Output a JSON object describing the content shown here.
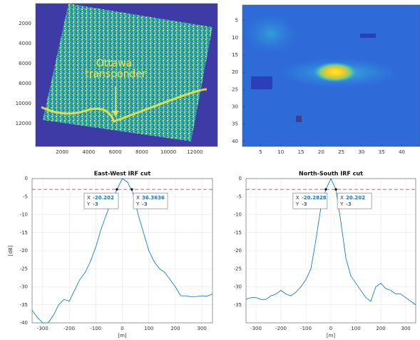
{
  "chart_data": [
    {
      "type": "image",
      "xlim": [
        0,
        13700
      ],
      "ylim": [
        14300,
        0
      ],
      "xticks": [
        2000,
        4000,
        6000,
        8000,
        10000,
        12000
      ],
      "yticks": [
        2000,
        4000,
        6000,
        8000,
        10000,
        12000
      ],
      "annotation": [
        "Ottawa",
        "transponder"
      ]
    },
    {
      "type": "heatmap",
      "xlim": [
        0.5,
        44.5
      ],
      "ylim": [
        41.5,
        0.5
      ],
      "xticks": [
        5,
        10,
        15,
        20,
        25,
        30,
        35,
        40
      ],
      "yticks": [
        5,
        10,
        15,
        20,
        25,
        30,
        35,
        40
      ]
    },
    {
      "type": "line",
      "title": "East-West IRF cut",
      "xlabel": "[m]",
      "ylabel": "[dB]",
      "xlim": [
        -340,
        340
      ],
      "ylim": [
        -40,
        0
      ],
      "xticks": [
        -300,
        -200,
        -100,
        0,
        100,
        200,
        300
      ],
      "yticks": [
        0,
        -5,
        -10,
        -15,
        -20,
        -25,
        -30,
        -35,
        -40
      ],
      "grid": true,
      "color": "#0072bd",
      "hline": -3,
      "hline_color": "#d62728",
      "x": [
        -340,
        -320,
        -300,
        -280,
        -260,
        -240,
        -220,
        -200,
        -180,
        -160,
        -140,
        -120,
        -100,
        -80,
        -60,
        -40,
        -20,
        0,
        20,
        40,
        60,
        80,
        100,
        120,
        140,
        160,
        180,
        200,
        220,
        240,
        260,
        280,
        300,
        320,
        340
      ],
      "values": [
        -36.5,
        -38.5,
        -40,
        -40,
        -38,
        -35,
        -33.5,
        -34,
        -31,
        -28,
        -26,
        -23,
        -19,
        -14,
        -10,
        -6,
        -3,
        0,
        -1,
        -4,
        -10,
        -15,
        -20,
        -23,
        -25,
        -26,
        -28,
        -30,
        -32.5,
        -32.5,
        -32.8,
        -32.7,
        -32.5,
        -32.6,
        -32
      ],
      "datatips": [
        {
          "x_label": "X",
          "x": -20.202,
          "y_label": "Y",
          "y": -3
        },
        {
          "x_label": "X",
          "x": 36.3636,
          "y_label": "Y",
          "y": -3
        }
      ]
    },
    {
      "type": "line",
      "title": "North-South IRF cut",
      "xlabel": "[m]",
      "xlim": [
        -340,
        340
      ],
      "ylim": [
        -40,
        0
      ],
      "xticks": [
        -300,
        -200,
        -100,
        0,
        100,
        200,
        300
      ],
      "yticks": [
        0,
        -5,
        -10,
        -15,
        -20,
        -25,
        -30,
        -35
      ],
      "grid": true,
      "color": "#0072bd",
      "hline": -3,
      "hline_color": "#d62728",
      "x": [
        -340,
        -320,
        -300,
        -280,
        -260,
        -240,
        -220,
        -200,
        -180,
        -160,
        -140,
        -120,
        -100,
        -80,
        -60,
        -40,
        -20,
        0,
        20,
        40,
        60,
        80,
        100,
        120,
        140,
        160,
        180,
        200,
        220,
        240,
        260,
        280,
        300,
        320,
        340
      ],
      "values": [
        -33.5,
        -33,
        -33,
        -33.5,
        -33.5,
        -32.5,
        -32,
        -31,
        -32,
        -32.5,
        -31.5,
        -30,
        -28,
        -25,
        -17,
        -8,
        -3,
        0,
        -3,
        -12,
        -22,
        -27,
        -29,
        -31,
        -33,
        -34,
        -30,
        -29,
        -30.5,
        -31,
        -32,
        -32,
        -33,
        -34,
        -35
      ],
      "datatips": [
        {
          "x_label": "X",
          "x": -20.2828,
          "y_label": "Y",
          "y": -3
        },
        {
          "x_label": "X",
          "x": 20.202,
          "y_label": "Y",
          "y": -3
        }
      ]
    }
  ]
}
